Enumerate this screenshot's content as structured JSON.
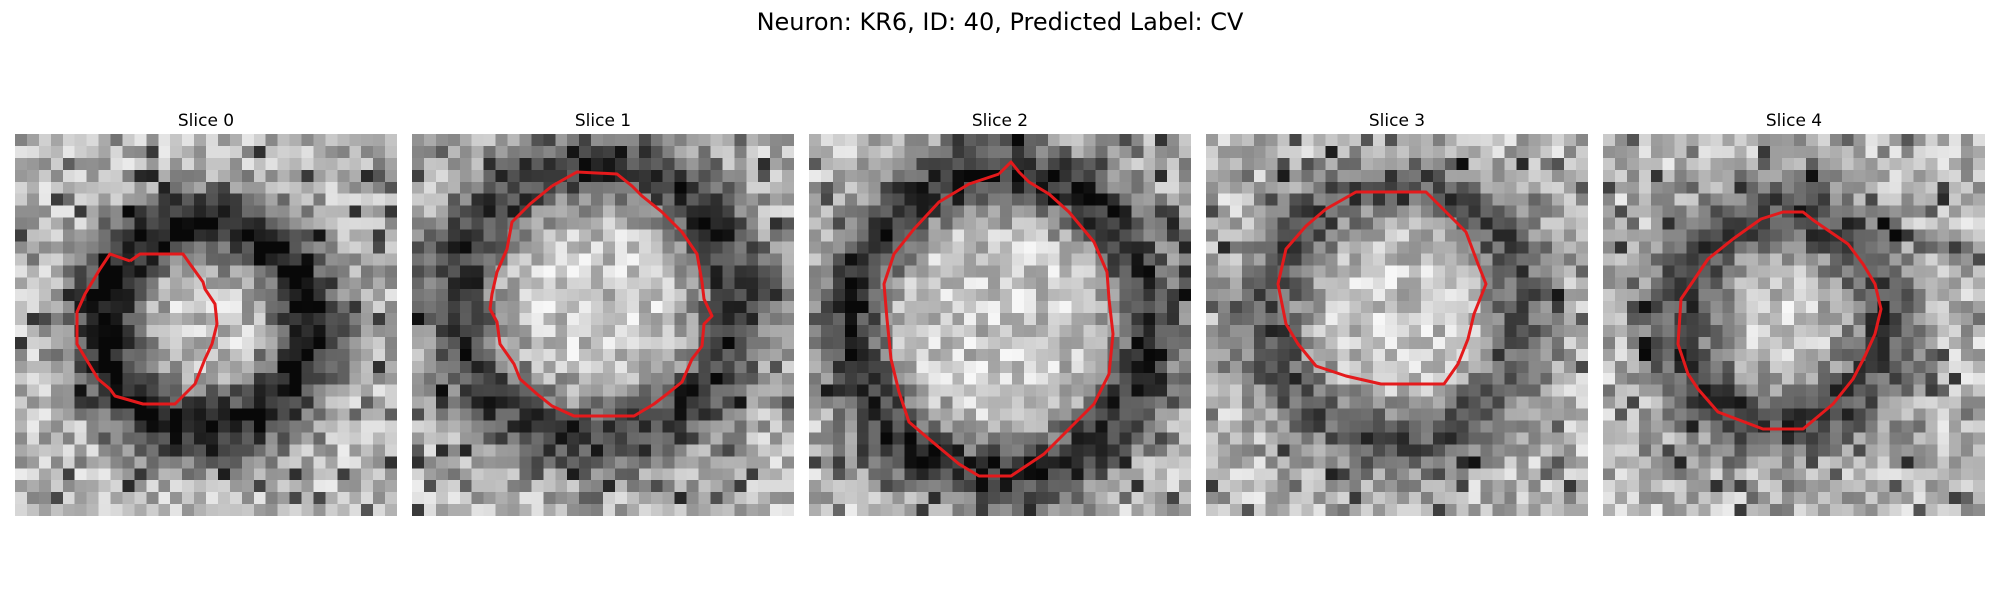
{
  "figure": {
    "title": "Neuron: KR6, ID: 40, Predicted Label: CV"
  },
  "panels": [
    {
      "title": "Slice 0"
    },
    {
      "title": "Slice 1"
    },
    {
      "title": "Slice 2"
    },
    {
      "title": "Slice 3"
    },
    {
      "title": "Slice 4"
    }
  ],
  "colors": {
    "contour": "#e41a1c",
    "background": "#ffffff"
  }
}
